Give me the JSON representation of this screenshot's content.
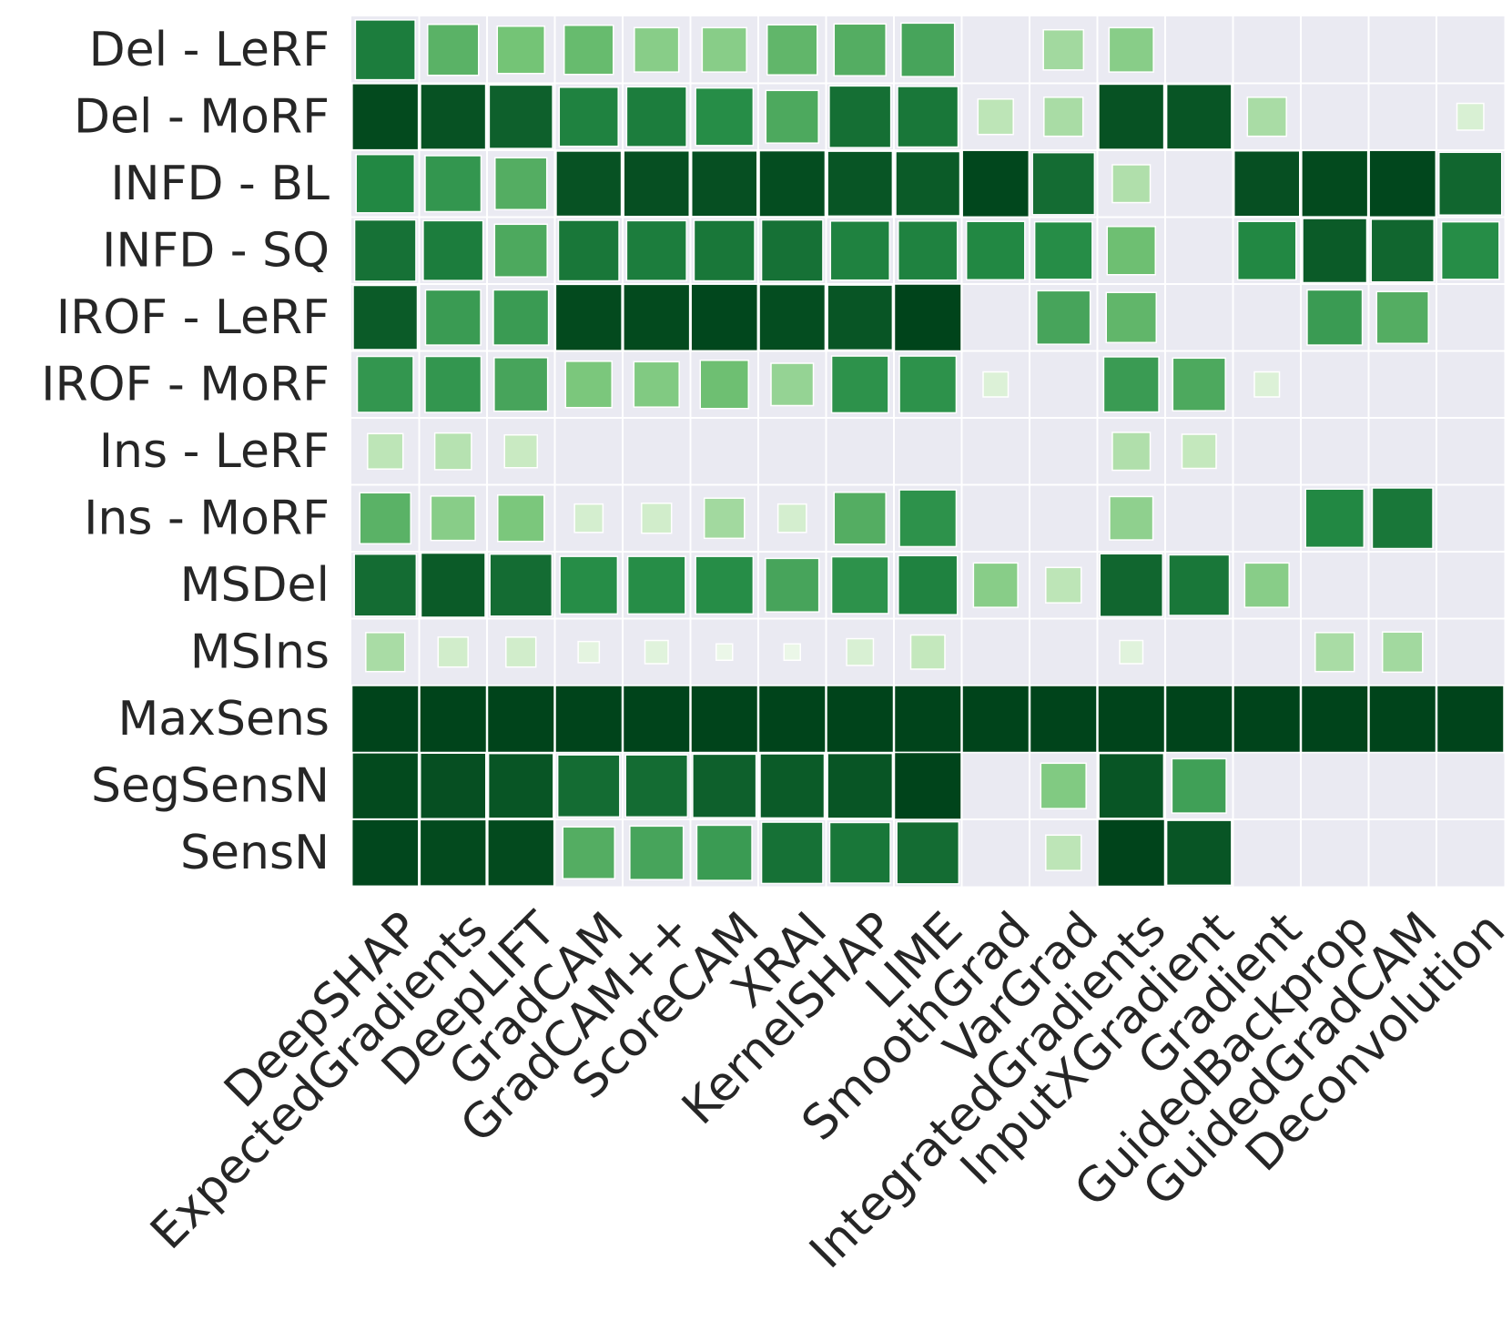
{
  "chart_data": {
    "type": "heatmap",
    "title": "",
    "xlabel": "",
    "ylabel": "",
    "encoding": "cell color intensity and square size both encode the value (0 = empty cell, 1 = darkest / full-size square)",
    "value_range": [
      0,
      1
    ],
    "colormap": [
      "#f7fcf5",
      "#c7e9c0",
      "#74c476",
      "#238b45",
      "#00441b"
    ],
    "background_color": "#eaeaf2",
    "grid_color": "#ffffff",
    "rows": [
      "Del - LeRF",
      "Del - MoRF",
      "INFD - BL",
      "INFD - SQ",
      "IROF - LeRF",
      "IROF - MoRF",
      "Ins - LeRF",
      "Ins - MoRF",
      "MSDel",
      "MSIns",
      "MaxSens",
      "SegSensN",
      "SensN"
    ],
    "columns": [
      "DeepSHAP",
      "ExpectedGradients",
      "DeepLIFT",
      "GradCAM",
      "GradCAM++",
      "ScoreCAM",
      "XRAI",
      "KernelSHAP",
      "LIME",
      "SmoothGrad",
      "VarGrad",
      "IntegratedGradients",
      "InputXGradient",
      "Gradient",
      "GuidedBackprop",
      "GuidedGradCAM",
      "Deconvolution"
    ],
    "values": [
      [
        0.8,
        0.58,
        0.5,
        0.54,
        0.44,
        0.44,
        0.56,
        0.6,
        0.64,
        0.0,
        0.36,
        0.44,
        0.0,
        0.0,
        0.0,
        0.0,
        0.0
      ],
      [
        0.98,
        0.95,
        0.9,
        0.78,
        0.8,
        0.74,
        0.62,
        0.85,
        0.82,
        0.28,
        0.34,
        0.95,
        0.94,
        0.34,
        0.0,
        0.0,
        0.16
      ],
      [
        0.76,
        0.7,
        0.6,
        0.95,
        0.96,
        0.96,
        0.97,
        0.94,
        0.92,
        0.99,
        0.86,
        0.32,
        0.0,
        0.96,
        0.98,
        0.99,
        0.88
      ],
      [
        0.84,
        0.8,
        0.62,
        0.82,
        0.8,
        0.82,
        0.84,
        0.78,
        0.78,
        0.76,
        0.74,
        0.52,
        0.0,
        0.76,
        0.92,
        0.88,
        0.74
      ],
      [
        0.92,
        0.68,
        0.68,
        0.98,
        0.98,
        0.99,
        0.97,
        0.94,
        1.0,
        0.0,
        0.64,
        0.56,
        0.0,
        0.0,
        0.68,
        0.6,
        0.0
      ],
      [
        0.7,
        0.7,
        0.64,
        0.48,
        0.46,
        0.52,
        0.4,
        0.72,
        0.72,
        0.14,
        0.0,
        0.68,
        0.62,
        0.14,
        0.0,
        0.0,
        0.0
      ],
      [
        0.28,
        0.3,
        0.24,
        0.0,
        0.0,
        0.0,
        0.0,
        0.0,
        0.0,
        0.0,
        0.0,
        0.32,
        0.26,
        0.0,
        0.0,
        0.0,
        0.0
      ],
      [
        0.58,
        0.44,
        0.48,
        0.18,
        0.2,
        0.36,
        0.18,
        0.6,
        0.72,
        0.0,
        0.0,
        0.42,
        0.0,
        0.0,
        0.76,
        0.82,
        0.0
      ],
      [
        0.86,
        0.92,
        0.86,
        0.74,
        0.74,
        0.74,
        0.64,
        0.72,
        0.78,
        0.44,
        0.28,
        0.88,
        0.82,
        0.44,
        0.0,
        0.0,
        0.0
      ],
      [
        0.34,
        0.2,
        0.2,
        0.1,
        0.12,
        0.06,
        0.06,
        0.16,
        0.26,
        0.0,
        0.0,
        0.12,
        0.0,
        0.0,
        0.34,
        0.36,
        0.0
      ],
      [
        1.0,
        1.0,
        1.0,
        1.0,
        1.0,
        1.0,
        1.0,
        1.0,
        1.0,
        1.0,
        1.0,
        1.0,
        1.0,
        1.0,
        1.0,
        1.0,
        1.0
      ],
      [
        0.98,
        0.96,
        0.94,
        0.86,
        0.86,
        0.9,
        0.92,
        0.94,
        1.0,
        0.0,
        0.46,
        0.94,
        0.66,
        0.0,
        0.0,
        0.0,
        0.0
      ],
      [
        0.99,
        0.98,
        0.98,
        0.6,
        0.64,
        0.68,
        0.84,
        0.82,
        0.86,
        0.0,
        0.28,
        1.0,
        0.94,
        0.0,
        0.0,
        0.0,
        0.0
      ]
    ],
    "grid": true,
    "legend": "none"
  }
}
